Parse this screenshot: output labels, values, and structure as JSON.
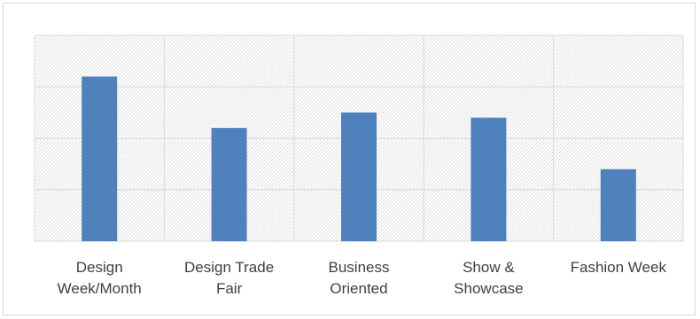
{
  "chart_data": {
    "type": "bar",
    "title": "",
    "xlabel": "",
    "ylabel": "",
    "categories": [
      [
        "Design",
        "Week/Month"
      ],
      [
        "Design Trade",
        "Fair"
      ],
      [
        "Business",
        "Oriented"
      ],
      [
        "Show &",
        "Showcase"
      ],
      [
        "Fashion Week"
      ]
    ],
    "values": [
      3.2,
      2.2,
      2.5,
      2.4,
      1.4
    ],
    "ylim": [
      0,
      4
    ],
    "y_gridlines": [
      0,
      1,
      2,
      3,
      4
    ],
    "y_tick_labels_shown": false,
    "grid": true,
    "legend": "none",
    "bar_color": "#4f81bd",
    "gridline_color": "#d9d9d9",
    "plot_pattern": "diagonal-hatch"
  }
}
